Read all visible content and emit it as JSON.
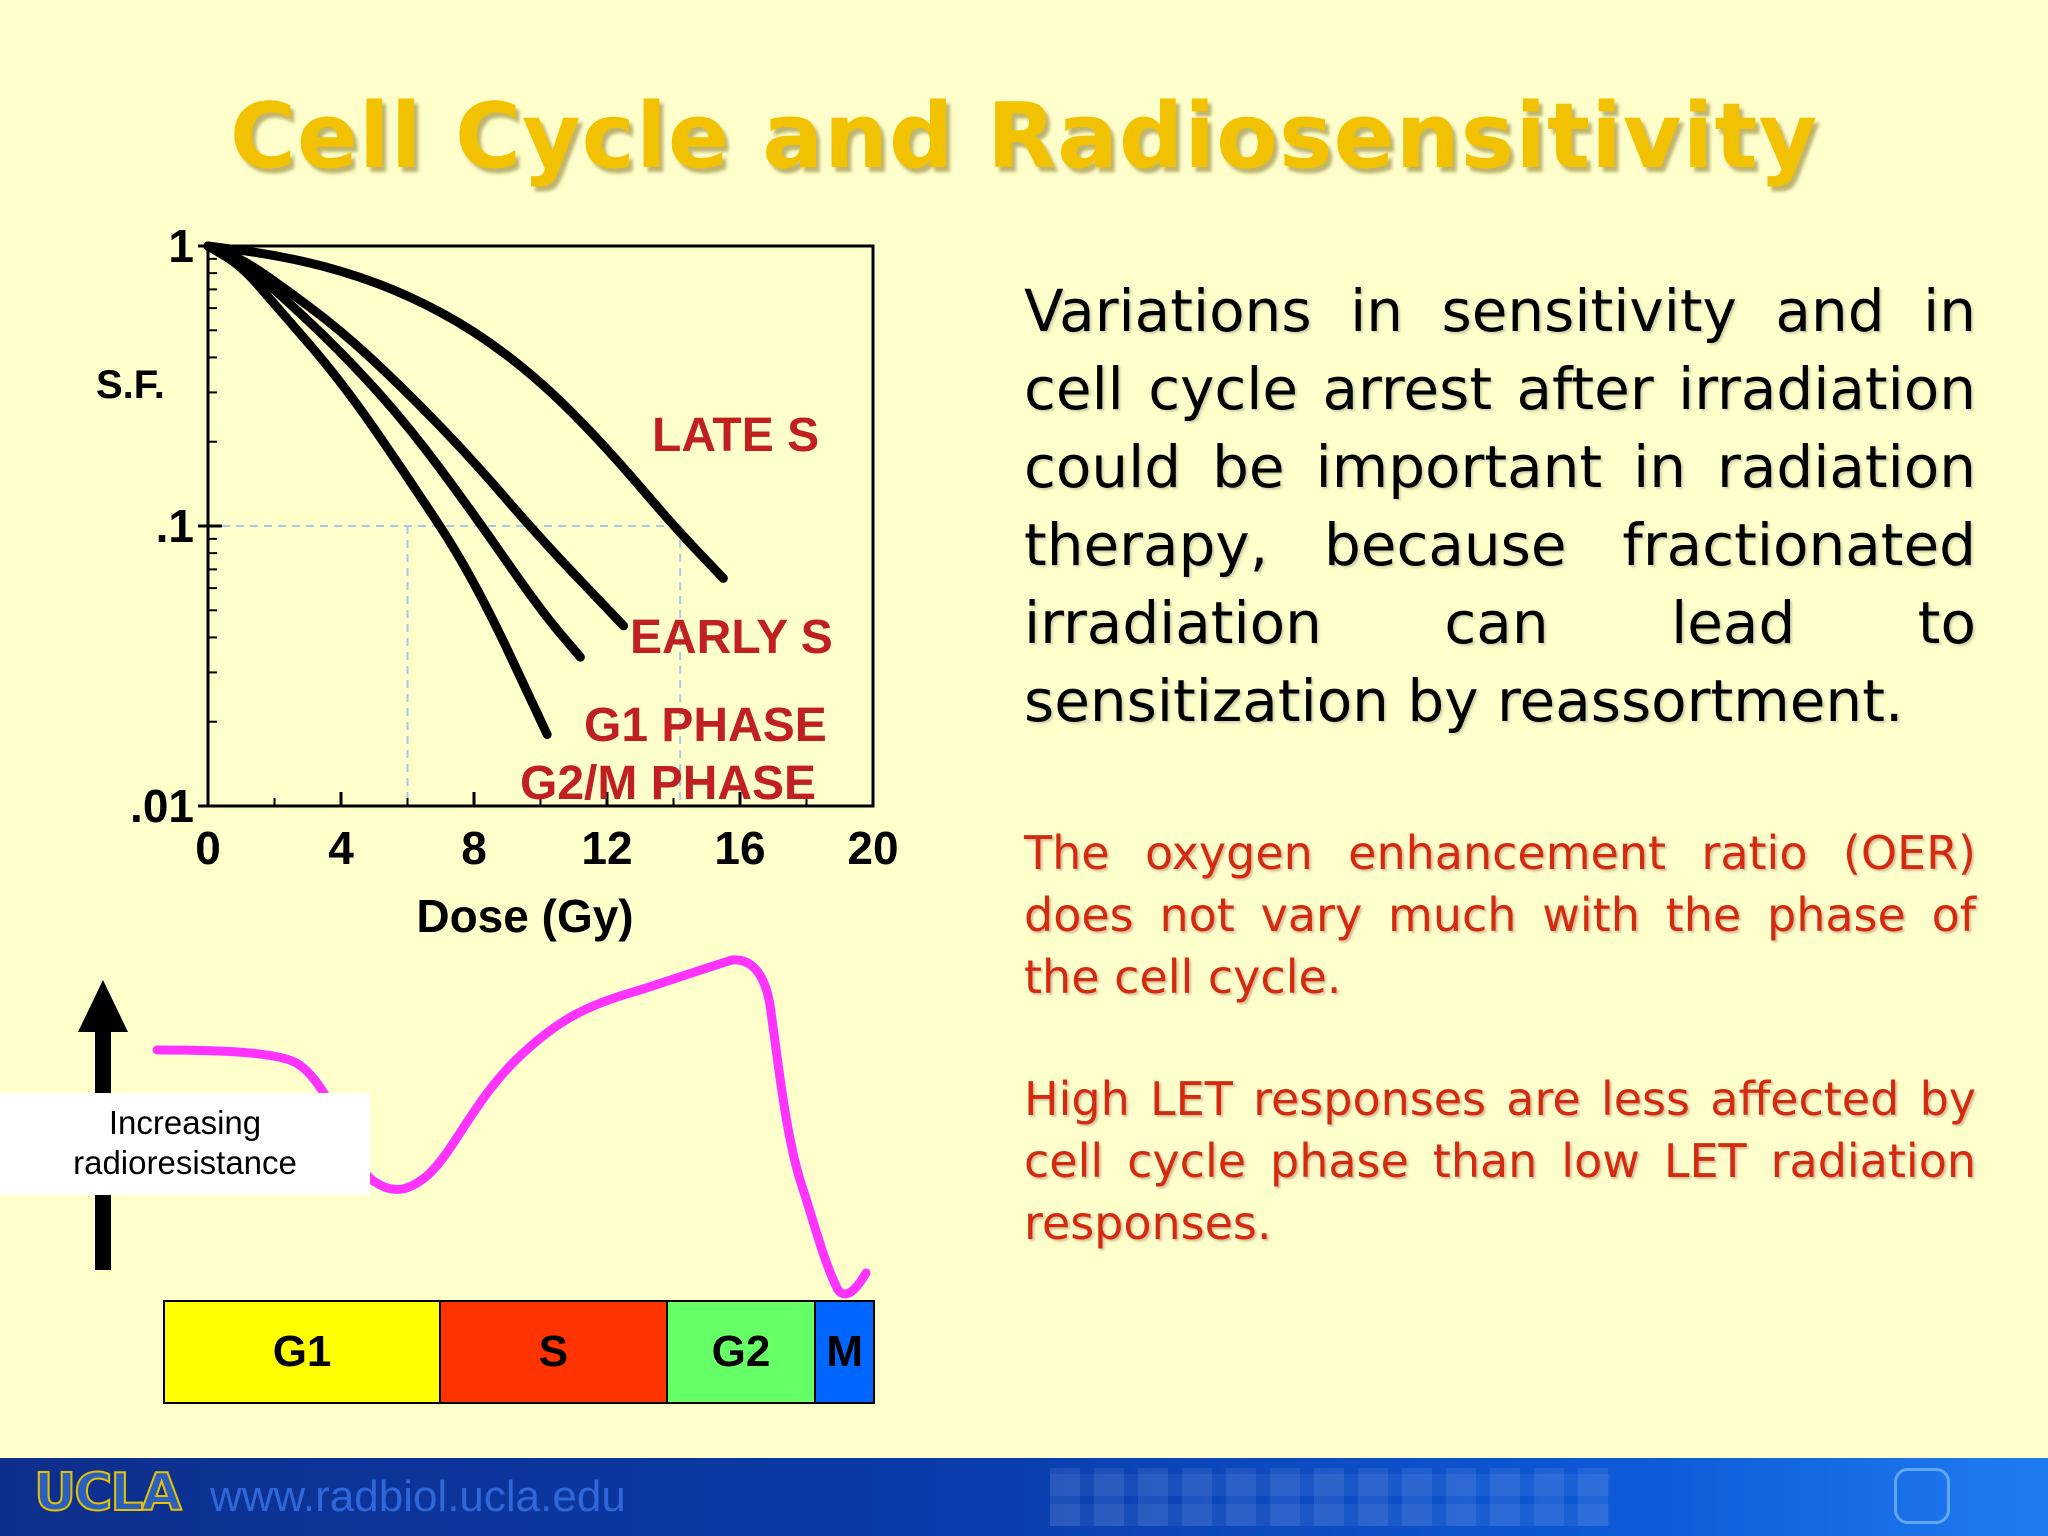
{
  "slide": {
    "title": "Cell Cycle and Radiosensitivity",
    "main_text": "Variations in sensitivity and in cell cycle arrest after irradiation could be important in radiation therapy, because fractionated irradiation can lead to sensitization by reassortment.",
    "oer_text": "The oxygen enhancement ratio (OER) does not vary much with the phase of the cell cycle.",
    "let_text": "High LET responses are less affected by cell cycle phase than low LET radiation responses."
  },
  "chart_data": [
    {
      "type": "line",
      "xlabel": "Dose (Gy)",
      "ylabel": "S.F.",
      "yscale": "log",
      "xlim": [
        0,
        20
      ],
      "ylim": [
        0.01,
        1
      ],
      "x_ticks": [
        "0",
        "4",
        "8",
        "12",
        "16",
        "20"
      ],
      "y_ticks": [
        "1",
        ".1",
        ".01"
      ],
      "reference_lines": {
        "y": 0.1,
        "x": [
          6,
          14.2
        ]
      },
      "series": [
        {
          "name": "LATE S",
          "x": [
            0,
            2,
            4,
            6,
            8,
            10,
            12,
            14,
            15.5
          ],
          "y": [
            1.0,
            0.93,
            0.82,
            0.67,
            0.5,
            0.33,
            0.19,
            0.1,
            0.065
          ]
        },
        {
          "name": "EARLY S",
          "x": [
            0,
            1,
            2,
            4,
            6,
            8,
            10,
            12.5
          ],
          "y": [
            1.0,
            0.9,
            0.75,
            0.5,
            0.3,
            0.17,
            0.09,
            0.044
          ]
        },
        {
          "name": "G1 PHASE",
          "x": [
            0,
            1,
            2,
            4,
            6,
            8,
            10,
            11.2
          ],
          "y": [
            1.0,
            0.88,
            0.7,
            0.42,
            0.23,
            0.11,
            0.05,
            0.034
          ]
        },
        {
          "name": "G2/M PHASE",
          "x": [
            0,
            1,
            2,
            4,
            6,
            8,
            10.2
          ],
          "y": [
            1.0,
            0.85,
            0.62,
            0.33,
            0.15,
            0.065,
            0.018
          ]
        }
      ]
    },
    {
      "type": "line",
      "ylabel": "Increasing radioresistance",
      "categories": [
        "G1",
        "S",
        "G2",
        "M"
      ],
      "phase_fractions": [
        0.39,
        0.32,
        0.21,
        0.08
      ],
      "phase_colors": [
        "#ffff00",
        "#ff3300",
        "#66ff66",
        "#0066ff"
      ],
      "curve_color": "#ff33ff"
    }
  ],
  "footer": {
    "logo": "UCLA",
    "url": "www.radbiol.ucla.edu"
  }
}
